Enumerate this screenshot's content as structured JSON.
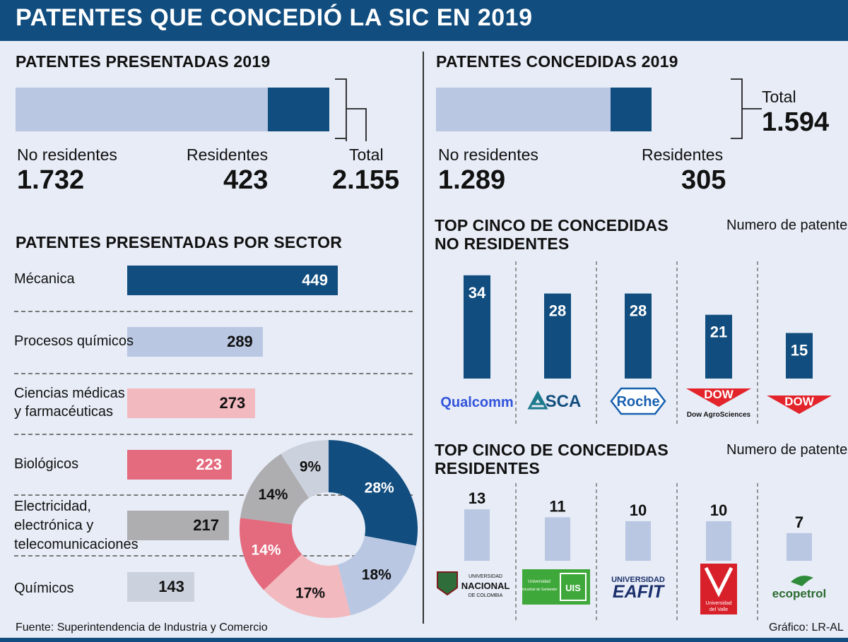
{
  "title": "PATENTES QUE CONCEDIÓ LA SIC EN 2019",
  "presentadas": {
    "title": "PATENTES PRESENTADAS 2019",
    "no_residentes_label": "No residentes",
    "no_residentes_value": "1.732",
    "residentes_label": "Residentes",
    "residentes_value": "423",
    "total_label": "Total",
    "total_value": "2.155"
  },
  "concedidas": {
    "title": "PATENTES CONCEDIDAS 2019",
    "no_residentes_label": "No residentes",
    "no_residentes_value": "1.289",
    "residentes_label": "Residentes",
    "residentes_value": "305",
    "total_label": "Total",
    "total_value": "1.594"
  },
  "sector": {
    "title": "PATENTES PRESENTADAS POR SECTOR",
    "labels": [
      [
        "Mécanica"
      ],
      [
        "Procesos químicos"
      ],
      [
        "Ciencias médicas",
        "y farmacéuticas"
      ],
      [
        "Biológicos"
      ],
      [
        "Electricidad,",
        "electrónica y",
        "telecomunicaciones"
      ],
      [
        "Químicos"
      ]
    ],
    "values_text": [
      "449",
      "289",
      "273",
      "223",
      "217",
      "143"
    ]
  },
  "top_no_res": {
    "title_line1": "TOP CINCO DE CONCEDIDAS",
    "title_line2": "NO RESIDENTES",
    "unit": "Numero de patentes",
    "values_text": [
      "34",
      "28",
      "28",
      "21",
      "15"
    ],
    "logos": [
      "Qualcomm",
      "SCA",
      "Roche",
      "DOW",
      "DOW"
    ],
    "logo_sub": "Dow AgroSciences"
  },
  "top_res": {
    "title_line1": "TOP CINCO DE CONCEDIDAS",
    "title_line2": "RESIDENTES",
    "unit": "Numero de patentes",
    "values_text": [
      "13",
      "11",
      "10",
      "10",
      "7"
    ],
    "logos": [
      {
        "main": "NACIONAL",
        "top": "UNIVERSIDAD",
        "bottom": "DE COLOMBIA"
      },
      {
        "main": "UIS",
        "top": "Universidad",
        "bottom": "Industrial de Santander"
      },
      {
        "main": "EAFIT",
        "top": "UNIVERSIDAD",
        "bottom": ""
      },
      {
        "main": "Universidad",
        "top": "",
        "bottom": "del Valle"
      },
      {
        "main": "ecopetrol",
        "top": "",
        "bottom": ""
      }
    ]
  },
  "footer": {
    "source": "Fuente: Superintendencia de Industria y Comercio",
    "credit": "Gráfico: LR-AL"
  },
  "colors": {
    "dark_blue": "#114d7e",
    "light_blue": "#b9c7e2",
    "light_pink": "#f2b9bf",
    "red_pink": "#e46a7d",
    "gray": "#aeaeb1",
    "light_gray": "#ccd2dd",
    "background": "#e7ecf6"
  },
  "chart_data": [
    {
      "type": "bar",
      "title": "PATENTES PRESENTADAS 2019",
      "categories": [
        "No residentes",
        "Residentes"
      ],
      "values": [
        1732,
        423
      ],
      "total": 2155,
      "stacked": true
    },
    {
      "type": "bar",
      "title": "PATENTES CONCEDIDAS 2019",
      "categories": [
        "No residentes",
        "Residentes"
      ],
      "values": [
        1289,
        305
      ],
      "total": 1594,
      "stacked": true
    },
    {
      "type": "bar",
      "title": "PATENTES PRESENTADAS POR SECTOR",
      "categories": [
        "Mécanica",
        "Procesos químicos",
        "Ciencias médicas y farmacéuticas",
        "Biológicos",
        "Electricidad, electrónica y telecomunicaciones",
        "Químicos"
      ],
      "values": [
        449,
        289,
        273,
        223,
        217,
        143
      ],
      "orientation": "horizontal"
    },
    {
      "type": "pie",
      "values": [
        28,
        18,
        17,
        14,
        14,
        9
      ],
      "labels": [
        "28%",
        "18%",
        "17%",
        "14%",
        "14%",
        "9%"
      ],
      "donut": true
    },
    {
      "type": "bar",
      "title": "TOP CINCO DE CONCEDIDAS NO RESIDENTES",
      "ylabel": "Numero de patentes",
      "categories": [
        "Qualcomm",
        "SCA",
        "Roche",
        "Dow AgroSciences",
        "Dow"
      ],
      "values": [
        34,
        28,
        28,
        21,
        15
      ]
    },
    {
      "type": "bar",
      "title": "TOP CINCO DE CONCEDIDAS RESIDENTES",
      "ylabel": "Numero de patentes",
      "categories": [
        "Universidad Nacional de Colombia",
        "Universidad Industrial de Santander",
        "Universidad EAFIT",
        "Universidad del Valle",
        "Ecopetrol"
      ],
      "values": [
        13,
        11,
        10,
        10,
        7
      ]
    }
  ]
}
